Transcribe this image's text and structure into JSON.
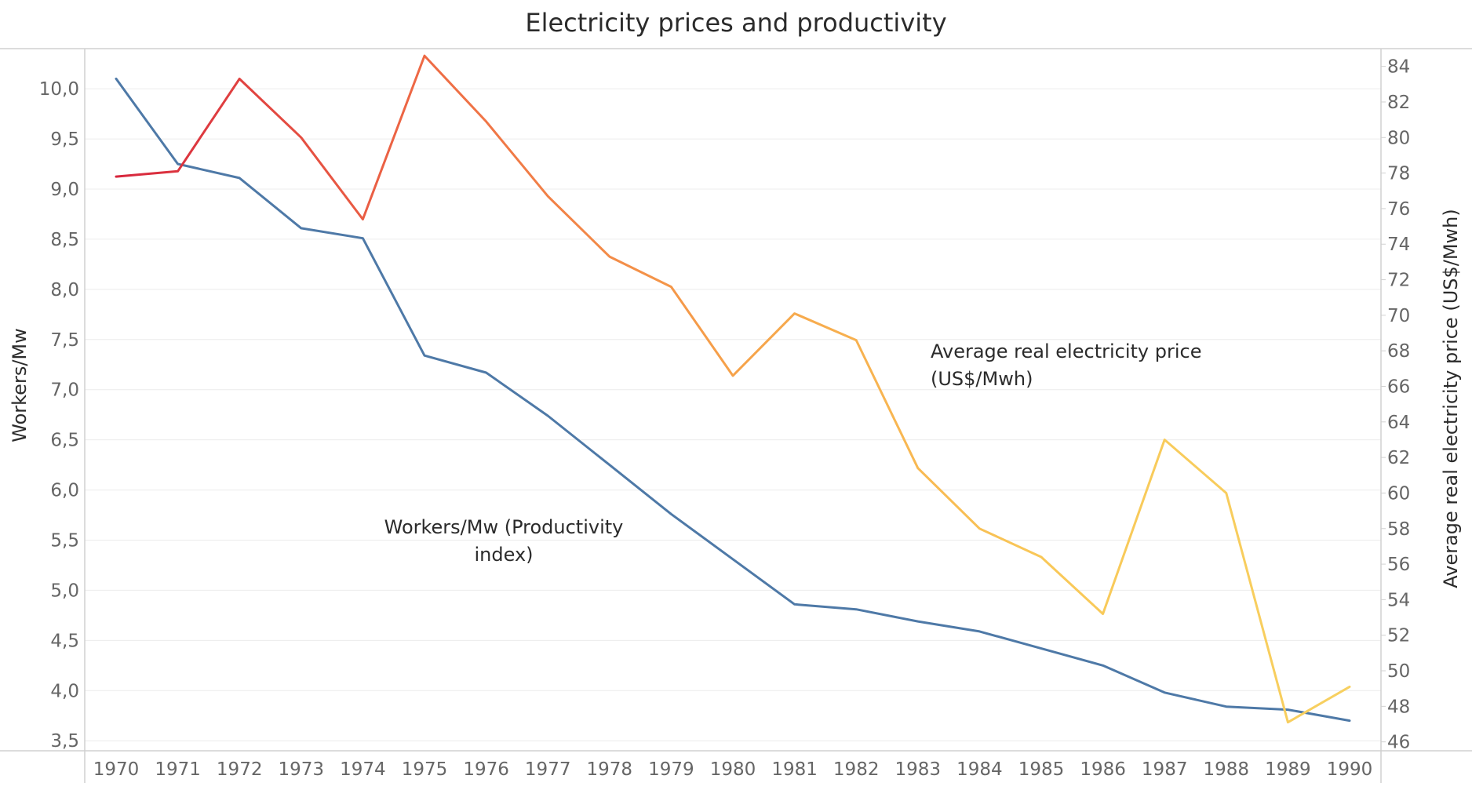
{
  "chart_data": {
    "type": "line",
    "title": "Electricity prices and productivity",
    "x": [
      "1970",
      "1971",
      "1972",
      "1973",
      "1974",
      "1975",
      "1976",
      "1977",
      "1978",
      "1979",
      "1980",
      "1981",
      "1982",
      "1983",
      "1984",
      "1985",
      "1986",
      "1987",
      "1988",
      "1989",
      "1990"
    ],
    "ylabel_left": "Workers/Mw",
    "ylabel_right": "Average real electricity price (US$/Mwh)",
    "ylim_left": [
      3.4,
      10.4
    ],
    "ylim_right": [
      45.5,
      85
    ],
    "yticks_left": [
      "10,0",
      "9,5",
      "9,0",
      "8,5",
      "8,0",
      "7,5",
      "7,0",
      "6,5",
      "6,0",
      "5,5",
      "5,0",
      "4,5",
      "4,0",
      "3,5"
    ],
    "yticks_right": [
      "84",
      "82",
      "80",
      "78",
      "76",
      "74",
      "72",
      "70",
      "68",
      "66",
      "64",
      "62",
      "60",
      "58",
      "56",
      "54",
      "52",
      "50",
      "48",
      "46"
    ],
    "grid": true,
    "series": [
      {
        "name": "Workers/Mw (Productivity index)",
        "axis": "left",
        "color": "#4e79a7",
        "values": [
          10.1,
          9.25,
          9.11,
          8.61,
          8.51,
          7.34,
          7.17,
          6.74,
          6.25,
          5.76,
          5.31,
          4.86,
          4.81,
          4.69,
          4.59,
          4.42,
          4.25,
          3.98,
          3.84,
          3.81,
          3.7
        ]
      },
      {
        "name": "Average real electricity price (US$/Mwh)",
        "axis": "right",
        "color_gradient": [
          "#d7263d",
          "#ee6a45",
          "#f6a24a",
          "#f9c858",
          "#f7d060"
        ],
        "values": [
          77.8,
          78.1,
          83.3,
          80.0,
          75.4,
          84.6,
          80.9,
          76.7,
          73.3,
          71.6,
          66.6,
          70.1,
          68.6,
          61.4,
          58.0,
          56.4,
          53.2,
          63.0,
          60.0,
          47.1,
          49.1
        ]
      }
    ]
  },
  "annotations": {
    "price_label_line1": "Average real electricity price",
    "price_label_line2": "(US$/Mwh)",
    "productivity_label_line1": "Workers/Mw (Productivity",
    "productivity_label_line2": "index)"
  }
}
